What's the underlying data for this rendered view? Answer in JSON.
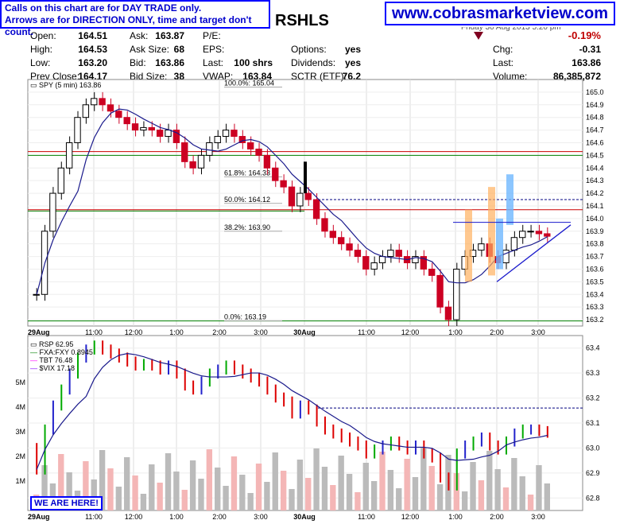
{
  "callout": {
    "line1": "Calls on this chart are for DAY TRADE only.",
    "line2": "Arrows are for DIRECTION ONLY, time and target don't count."
  },
  "website": "www.cobrasmarketview.com",
  "ticker_fragment": "RSHLS",
  "date_fragment": "Friday  30 Aug 2013  5:20 pm",
  "quote": {
    "open_l": "Open:",
    "open": "164.51",
    "high_l": "High:",
    "high": "164.53",
    "low_l": "Low:",
    "low": "163.20",
    "prev_l": "Prev Close:",
    "prev": "164.17",
    "ask_l": "Ask:",
    "ask": "163.87",
    "asksize_l": "Ask Size:",
    "asksize": "68",
    "bid_l": "Bid:",
    "bid": "163.86",
    "bidsize_l": "Bid Size:",
    "bidsize": "38",
    "pe_l": "P/E:",
    "eps_l": "EPS:",
    "last_l": "Last:",
    "last_mid": "100 shrs",
    "vwap_l": "VWAP:",
    "vwap": "163.84",
    "options_l": "Options:",
    "options": "yes",
    "div_l": "Dividends:",
    "div": "yes",
    "sctr_l": "SCTR (ETF):",
    "sctr": "76.2",
    "pct": "-0.19%",
    "chg_l": "Chg:",
    "chg": "-0.31",
    "last2_l": "Last:",
    "last2": "163.86",
    "vol_l": "Volume:",
    "vol": "86,385,872"
  },
  "panel_top": {
    "legend": "SPY (5 min) 163.86"
  },
  "panel_bottom": {
    "legend": [
      "RSP 62.95",
      "FXA:FXY 0.8945",
      "TBT 76.48",
      "$VIX 17.18"
    ],
    "legend_colors": [
      "#000000",
      "#008000",
      "#ff00ff",
      "#8000ff"
    ]
  },
  "here_label": "WE ARE HERE!",
  "colors": {
    "up": "#000000",
    "down": "#cc0022",
    "ma": "#1a1a8c",
    "green_hline": "#008000",
    "red_hline": "#cc0000",
    "blue_bar": "#6fb8ff",
    "orange_bar": "#ffb060"
  },
  "chart_data": [
    {
      "type": "candlestick",
      "title": "SPY (5 min) 163.86",
      "ylim": [
        163.15,
        165.1
      ],
      "yticks": [
        "165.0",
        "164.9",
        "164.8",
        "164.7",
        "164.6",
        "164.5",
        "164.4",
        "164.3",
        "164.2",
        "164.1",
        "164.0",
        "163.9",
        "163.8",
        "163.7",
        "163.6",
        "163.5",
        "163.4",
        "163.3",
        "163.2"
      ],
      "xticks": [
        "29Aug",
        "11:00",
        "12:00",
        "1:00",
        "2:00",
        "3:00",
        "30Aug",
        "11:00",
        "12:00",
        "1:00",
        "2:00",
        "3:00"
      ],
      "fib": [
        {
          "label": "100.0%: 165.04",
          "value": 165.04
        },
        {
          "label": "61.8%: 164.33",
          "value": 164.33
        },
        {
          "label": "50.0%: 164.12",
          "value": 164.12
        },
        {
          "label": "38.2%: 163.90",
          "value": 163.9
        },
        {
          "label": "0.0%: 163.19",
          "value": 163.19
        }
      ],
      "close_path": [
        163.4,
        163.9,
        164.2,
        164.4,
        164.6,
        164.8,
        164.9,
        164.95,
        164.9,
        164.85,
        164.8,
        164.75,
        164.7,
        164.72,
        164.7,
        164.65,
        164.7,
        164.6,
        164.45,
        164.4,
        164.5,
        164.6,
        164.65,
        164.7,
        164.65,
        164.6,
        164.55,
        164.5,
        164.4,
        164.3,
        164.25,
        164.1,
        164.2,
        164.15,
        164.0,
        163.9,
        163.85,
        163.8,
        163.75,
        163.7,
        163.6,
        163.65,
        163.7,
        163.75,
        163.7,
        163.65,
        163.7,
        163.6,
        163.55,
        163.3,
        163.2,
        163.6,
        163.7,
        163.75,
        163.8,
        163.7,
        163.65,
        163.75,
        163.85,
        163.9,
        163.9,
        163.88,
        163.86
      ]
    },
    {
      "type": "bar",
      "title": "RSP 62.95",
      "ylim": [
        62.75,
        63.45
      ],
      "yticks": [
        "63.4",
        "63.3",
        "63.2",
        "63.1",
        "63.0",
        "62.9",
        "62.8"
      ],
      "volume_ticks": [
        "5M",
        "4M",
        "3M",
        "2M",
        "1M"
      ]
    }
  ]
}
